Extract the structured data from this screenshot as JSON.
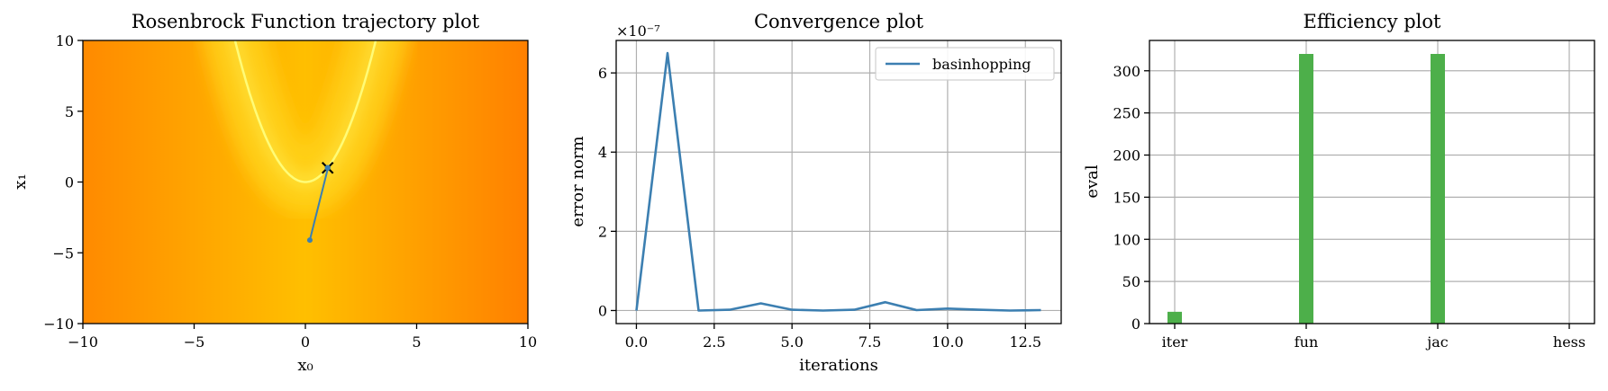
{
  "chart_data": [
    {
      "type": "contour",
      "title": "Rosenbrock Function trajectory plot",
      "xlabel": "x₀",
      "ylabel": "x₁",
      "xlim": [
        -10,
        10
      ],
      "ylim": [
        -10,
        10
      ],
      "xticks": [
        -10,
        -5,
        0,
        5,
        10
      ],
      "yticks": [
        -10,
        -5,
        0,
        5,
        10
      ],
      "xtick_labels": [
        "−10",
        "−5",
        "0",
        "5",
        "10"
      ],
      "ytick_labels": [
        "−10",
        "−5",
        "0",
        "5",
        "10"
      ],
      "grid": false,
      "colormap": "yellow-orange",
      "colors": {
        "valley": "#ffff66",
        "mid": "#ffc000",
        "high": "#ff8000",
        "trajectory": "#3c7fb1"
      },
      "trajectory": {
        "x": [
          0.2,
          1.0
        ],
        "y": [
          -4.1,
          0.9
        ]
      },
      "end_marker": {
        "x": 1.0,
        "y": 1.0
      }
    },
    {
      "type": "line",
      "title": "Convergence plot",
      "xlabel": "iterations",
      "ylabel": "error norm",
      "scale_label": "×10⁻⁷",
      "xlim": [
        -0.65,
        13.65
      ],
      "ylim": [
        -0.33,
        6.82
      ],
      "xticks": [
        0.0,
        2.5,
        5.0,
        7.5,
        10.0,
        12.5
      ],
      "xtick_labels": [
        "0.0",
        "2.5",
        "5.0",
        "7.5",
        "10.0",
        "12.5"
      ],
      "yticks": [
        0,
        2,
        4,
        6
      ],
      "ytick_labels": [
        "0",
        "2",
        "4",
        "6"
      ],
      "grid": true,
      "legend": "top-right",
      "series": [
        {
          "name": "basinhopping",
          "color": "#3c7fb1",
          "x": [
            0,
            1,
            2,
            3,
            4,
            5,
            6,
            7,
            8,
            9,
            10,
            11,
            12,
            13
          ],
          "y": [
            0.0,
            6.5,
            0.0,
            0.02,
            0.18,
            0.02,
            0.0,
            0.02,
            0.21,
            0.01,
            0.05,
            0.02,
            0.0,
            0.01
          ]
        }
      ]
    },
    {
      "type": "bar",
      "title": "Efficiency plot",
      "xlabel": "",
      "ylabel": "eval",
      "ylim": [
        0,
        336
      ],
      "yticks": [
        0,
        50,
        100,
        150,
        200,
        250,
        300
      ],
      "ytick_labels": [
        "0",
        "50",
        "100",
        "150",
        "200",
        "250",
        "300"
      ],
      "grid": true,
      "color": "#4daf4a",
      "categories": [
        "iter",
        "fun",
        "jac",
        "hess"
      ],
      "values": [
        14,
        320,
        320,
        0
      ]
    }
  ]
}
